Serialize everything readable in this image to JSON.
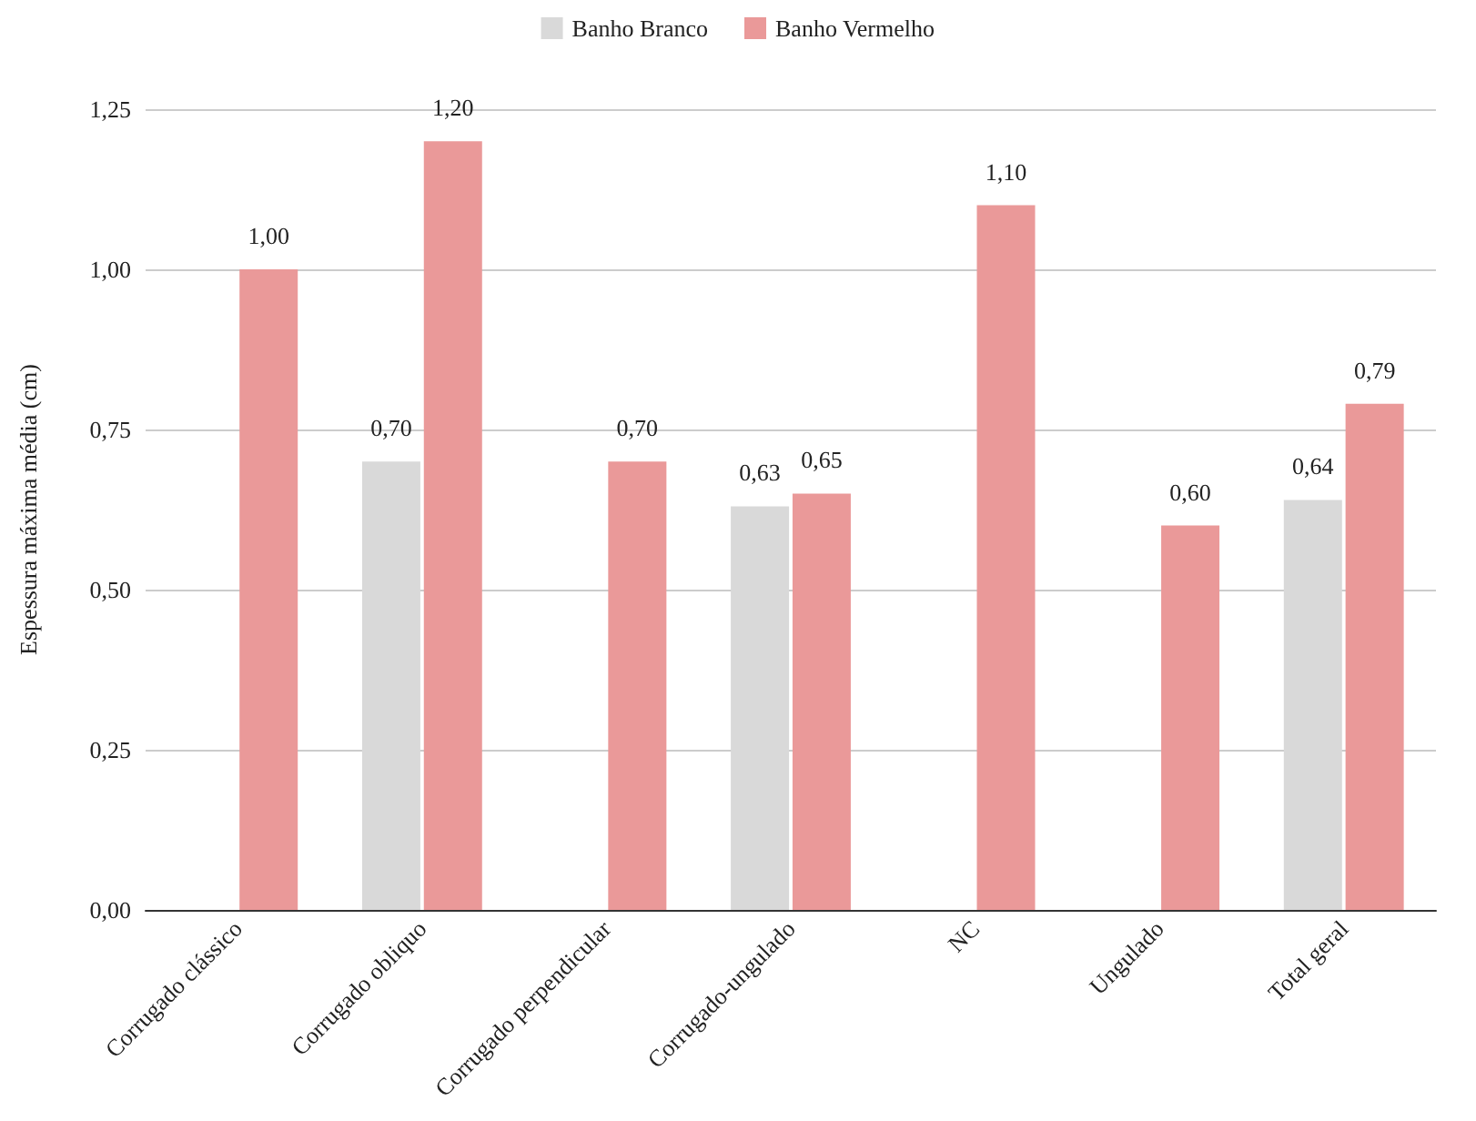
{
  "chart_data": {
    "type": "bar",
    "ylabel": "Espessura máxima média (cm)",
    "categories": [
      "Corrugado clássico",
      "Corrugado obliquo",
      "Corrugado perpendicular",
      "Corrugado-ungulado",
      "NC",
      "Ungulado",
      "Total geral"
    ],
    "series": [
      {
        "name": "Banho Branco",
        "color": "#d9d9d9",
        "values": [
          null,
          0.7,
          null,
          0.63,
          null,
          null,
          0.64
        ],
        "value_labels": [
          null,
          "0,70",
          null,
          "0,63",
          null,
          null,
          "0,64"
        ]
      },
      {
        "name": "Banho Vermelho",
        "color": "#ea9999",
        "values": [
          1.0,
          1.2,
          0.7,
          0.65,
          1.1,
          0.6,
          0.79
        ],
        "value_labels": [
          "1,00",
          "1,20",
          "0,70",
          "0,65",
          "1,10",
          "0,60",
          "0,79"
        ]
      }
    ],
    "ylim": [
      0,
      1.25
    ],
    "yticks": [
      {
        "value": 0,
        "label": "0,00"
      },
      {
        "value": 0.25,
        "label": "0,25"
      },
      {
        "value": 0.5,
        "label": "0,50"
      },
      {
        "value": 0.75,
        "label": "0,75"
      },
      {
        "value": 1,
        "label": "1,00"
      },
      {
        "value": 1.25,
        "label": "1,25"
      }
    ],
    "grid": "y",
    "legend": "top"
  }
}
